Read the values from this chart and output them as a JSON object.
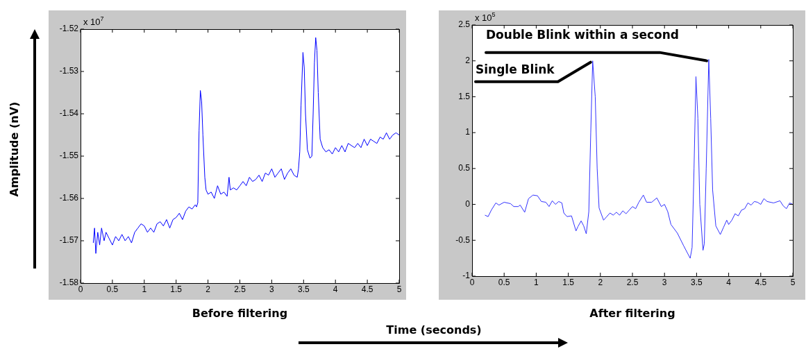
{
  "chart_data": [
    {
      "type": "line",
      "xlabel": "Before filtering",
      "ylabel": "Amplitude (nV)",
      "annotations": [
        "x 10$^{7}$",
        "Time (seconds)"
      ],
      "marker": "none",
      "xlim": [
        0,
        5
      ],
      "xticks": [
        0,
        0.5,
        1,
        1.5,
        2,
        2.5,
        3,
        3.5,
        4,
        4.5,
        5
      ],
      "ylim": [
        -1.58,
        -1.52
      ],
      "yticks": [
        -1.58,
        -1.57,
        -1.56,
        -1.55,
        -1.54,
        -1.53,
        -1.52
      ],
      "x": [
        0.2,
        0.22,
        0.24,
        0.27,
        0.3,
        0.33,
        0.37,
        0.4,
        0.45,
        0.5,
        0.55,
        0.6,
        0.65,
        0.7,
        0.75,
        0.8,
        0.85,
        0.9,
        0.95,
        1.0,
        1.05,
        1.1,
        1.15,
        1.2,
        1.25,
        1.3,
        1.35,
        1.4,
        1.45,
        1.5,
        1.55,
        1.6,
        1.65,
        1.7,
        1.75,
        1.8,
        1.82,
        1.84,
        1.86,
        1.88,
        1.9,
        1.92,
        1.95,
        1.97,
        2.0,
        2.05,
        2.1,
        2.15,
        2.2,
        2.25,
        2.3,
        2.33,
        2.35,
        2.4,
        2.45,
        2.5,
        2.55,
        2.6,
        2.65,
        2.7,
        2.75,
        2.8,
        2.85,
        2.9,
        2.95,
        3.0,
        3.05,
        3.1,
        3.15,
        3.2,
        3.25,
        3.3,
        3.35,
        3.4,
        3.42,
        3.44,
        3.46,
        3.49,
        3.51,
        3.53,
        3.56,
        3.6,
        3.63,
        3.65,
        3.67,
        3.69,
        3.71,
        3.73,
        3.76,
        3.8,
        3.85,
        3.9,
        3.95,
        4.0,
        4.05,
        4.1,
        4.15,
        4.2,
        4.3,
        4.35,
        4.4,
        4.45,
        4.5,
        4.55,
        4.6,
        4.65,
        4.7,
        4.75,
        4.8,
        4.85,
        4.9,
        4.95,
        5.0
      ],
      "series": [
        {
          "color": "#0000ff",
          "values": [
            -1.5705,
            -1.567,
            -1.573,
            -1.568,
            -1.571,
            -1.567,
            -1.57,
            -1.568,
            -1.5695,
            -1.571,
            -1.569,
            -1.57,
            -1.5685,
            -1.57,
            -1.569,
            -1.5705,
            -1.568,
            -1.567,
            -1.566,
            -1.5665,
            -1.568,
            -1.567,
            -1.568,
            -1.566,
            -1.5655,
            -1.5665,
            -1.565,
            -1.567,
            -1.565,
            -1.5645,
            -1.5635,
            -1.565,
            -1.563,
            -1.562,
            -1.5625,
            -1.5615,
            -1.562,
            -1.561,
            -1.544,
            -1.5345,
            -1.537,
            -1.545,
            -1.555,
            -1.558,
            -1.559,
            -1.5585,
            -1.56,
            -1.557,
            -1.559,
            -1.5585,
            -1.5595,
            -1.555,
            -1.558,
            -1.5575,
            -1.558,
            -1.557,
            -1.556,
            -1.557,
            -1.555,
            -1.556,
            -1.5555,
            -1.5545,
            -1.556,
            -1.554,
            -1.5545,
            -1.553,
            -1.555,
            -1.554,
            -1.553,
            -1.5555,
            -1.554,
            -1.553,
            -1.5545,
            -1.555,
            -1.553,
            -1.549,
            -1.538,
            -1.5255,
            -1.529,
            -1.54,
            -1.5485,
            -1.5505,
            -1.55,
            -1.54,
            -1.528,
            -1.522,
            -1.525,
            -1.535,
            -1.546,
            -1.548,
            -1.549,
            -1.5485,
            -1.5495,
            -1.548,
            -1.549,
            -1.5475,
            -1.549,
            -1.547,
            -1.548,
            -1.547,
            -1.548,
            -1.546,
            -1.5475,
            -1.546,
            -1.5465,
            -1.547,
            -1.5455,
            -1.546,
            -1.5445,
            -1.546,
            -1.545,
            -1.5445,
            -1.545
          ]
        }
      ]
    },
    {
      "type": "line",
      "xlabel": "After filtering",
      "annotations": [
        "x 10$^{5}$",
        {
          "text": "Single Blink",
          "x": 1.88,
          "y": 2.0
        },
        {
          "text": "Double Blink within a second",
          "x": 3.69,
          "y": 2.02
        }
      ],
      "marker": "none",
      "xlim": [
        0,
        5
      ],
      "xticks": [
        0,
        0.5,
        1,
        1.5,
        2,
        2.5,
        3,
        3.5,
        4,
        4.5,
        5
      ],
      "ylim": [
        -1,
        2.5
      ],
      "yticks": [
        -1,
        -0.5,
        0,
        0.5,
        1,
        1.5,
        2,
        2.5
      ],
      "x": [
        0.2,
        0.25,
        0.3,
        0.37,
        0.42,
        0.5,
        0.6,
        0.65,
        0.72,
        0.75,
        0.82,
        0.88,
        0.95,
        1.02,
        1.08,
        1.15,
        1.2,
        1.25,
        1.3,
        1.35,
        1.4,
        1.43,
        1.48,
        1.55,
        1.62,
        1.65,
        1.7,
        1.74,
        1.78,
        1.82,
        1.85,
        1.88,
        1.92,
        1.95,
        1.98,
        2.05,
        2.1,
        2.15,
        2.2,
        2.25,
        2.3,
        2.35,
        2.4,
        2.45,
        2.5,
        2.55,
        2.6,
        2.67,
        2.72,
        2.8,
        2.88,
        2.95,
        3.0,
        3.05,
        3.1,
        3.2,
        3.3,
        3.4,
        3.43,
        3.46,
        3.49,
        3.52,
        3.55,
        3.6,
        3.62,
        3.65,
        3.69,
        3.72,
        3.75,
        3.8,
        3.87,
        3.92,
        3.97,
        4.0,
        4.05,
        4.1,
        4.15,
        4.2,
        4.25,
        4.3,
        4.35,
        4.4,
        4.45,
        4.5,
        4.55,
        4.6,
        4.7,
        4.8,
        4.85,
        4.9,
        4.95,
        5.0
      ],
      "series": [
        {
          "color": "#3333ff",
          "values": [
            -0.15,
            -0.17,
            -0.08,
            0.02,
            -0.01,
            0.03,
            0.01,
            -0.03,
            -0.03,
            -0.01,
            -0.11,
            0.08,
            0.13,
            0.12,
            0.04,
            0.03,
            -0.03,
            0.05,
            0.0,
            0.04,
            0.02,
            -0.12,
            -0.17,
            -0.16,
            -0.37,
            -0.31,
            -0.23,
            -0.3,
            -0.41,
            -0.1,
            1.0,
            2.0,
            1.5,
            0.5,
            -0.05,
            -0.22,
            -0.17,
            -0.12,
            -0.15,
            -0.11,
            -0.15,
            -0.09,
            -0.13,
            -0.08,
            -0.03,
            -0.06,
            0.03,
            0.13,
            0.03,
            0.03,
            0.09,
            -0.03,
            0.0,
            -0.1,
            -0.28,
            -0.4,
            -0.58,
            -0.75,
            -0.6,
            0.5,
            1.78,
            1.2,
            0.0,
            -0.64,
            -0.55,
            0.5,
            2.02,
            1.2,
            0.2,
            -0.3,
            -0.42,
            -0.32,
            -0.22,
            -0.28,
            -0.22,
            -0.13,
            -0.16,
            -0.08,
            -0.06,
            0.02,
            -0.01,
            0.04,
            0.03,
            0.0,
            0.08,
            0.04,
            0.02,
            0.05,
            -0.02,
            -0.06,
            0.02,
            0.0
          ]
        }
      ]
    }
  ]
}
